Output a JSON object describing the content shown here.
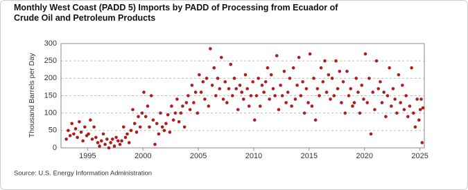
{
  "chart_data": {
    "type": "scatter",
    "title": "Monthly West Coast (PADD 5) Imports by PADD of Processing from Ecuador of Crude Oil and Petroleum Products",
    "y_label": "Thousand Barrels per Day",
    "source": "Source: U.S. Energy Information Administration",
    "color": "#b01c1c",
    "grid": true,
    "xlim": [
      1992.6,
      2025.4
    ],
    "xticks": [
      1995,
      2000,
      2005,
      2010,
      2015,
      2020,
      2025
    ],
    "ylim": [
      0,
      300
    ],
    "yticks": [
      0,
      50,
      100,
      150,
      200,
      250,
      300
    ],
    "x": [
      1993.08,
      1993.25,
      1993.42,
      1993.58,
      1993.75,
      1993.92,
      1994.08,
      1994.25,
      1994.42,
      1994.58,
      1994.75,
      1994.92,
      1995.08,
      1995.25,
      1995.42,
      1995.58,
      1995.75,
      1995.92,
      1996.08,
      1996.25,
      1996.42,
      1996.58,
      1996.75,
      1996.92,
      1997.08,
      1997.25,
      1997.42,
      1997.58,
      1997.75,
      1997.92,
      1998.08,
      1998.25,
      1998.42,
      1998.58,
      1998.75,
      1998.92,
      1999.08,
      1999.25,
      1999.42,
      1999.58,
      1999.75,
      1999.92,
      2000.08,
      2000.25,
      2000.42,
      2000.58,
      2000.75,
      2000.92,
      2001.08,
      2001.25,
      2001.42,
      2001.58,
      2001.75,
      2001.92,
      2002.08,
      2002.25,
      2002.42,
      2002.58,
      2002.75,
      2002.92,
      2003.08,
      2003.25,
      2003.42,
      2003.58,
      2003.75,
      2003.92,
      2004.08,
      2004.25,
      2004.42,
      2004.58,
      2004.75,
      2004.92,
      2005.08,
      2005.25,
      2005.42,
      2005.58,
      2005.75,
      2005.92,
      2006.08,
      2006.25,
      2006.42,
      2006.58,
      2006.75,
      2006.92,
      2007.08,
      2007.25,
      2007.42,
      2007.58,
      2007.75,
      2007.92,
      2008.08,
      2008.25,
      2008.42,
      2008.58,
      2008.75,
      2008.92,
      2009.08,
      2009.25,
      2009.42,
      2009.58,
      2009.75,
      2009.92,
      2010.08,
      2010.25,
      2010.42,
      2010.58,
      2010.75,
      2010.92,
      2011.08,
      2011.25,
      2011.42,
      2011.58,
      2011.75,
      2011.92,
      2012.08,
      2012.25,
      2012.42,
      2012.58,
      2012.75,
      2012.92,
      2013.08,
      2013.25,
      2013.42,
      2013.58,
      2013.75,
      2013.92,
      2014.08,
      2014.25,
      2014.42,
      2014.58,
      2014.75,
      2014.92,
      2015.08,
      2015.25,
      2015.42,
      2015.58,
      2015.75,
      2015.92,
      2016.08,
      2016.25,
      2016.42,
      2016.58,
      2016.75,
      2016.92,
      2017.08,
      2017.25,
      2017.42,
      2017.58,
      2017.75,
      2017.92,
      2018.08,
      2018.25,
      2018.42,
      2018.58,
      2018.75,
      2018.92,
      2019.08,
      2019.25,
      2019.42,
      2019.58,
      2019.75,
      2019.92,
      2020.08,
      2020.25,
      2020.42,
      2020.58,
      2020.75,
      2020.92,
      2021.08,
      2021.25,
      2021.42,
      2021.58,
      2021.75,
      2021.92,
      2022.08,
      2022.25,
      2022.42,
      2022.58,
      2022.75,
      2022.92,
      2023.08,
      2023.25,
      2023.42,
      2023.58,
      2023.75,
      2023.92,
      2024.08,
      2024.25,
      2024.42,
      2024.58,
      2024.75,
      2024.92,
      2025.04,
      2025.12,
      2025.2,
      2025.28
    ],
    "values": [
      25,
      50,
      35,
      70,
      40,
      55,
      30,
      75,
      45,
      20,
      60,
      35,
      40,
      80,
      25,
      60,
      30,
      15,
      5,
      20,
      40,
      10,
      25,
      0,
      15,
      25,
      5,
      30,
      20,
      10,
      20,
      60,
      30,
      40,
      15,
      50,
      110,
      70,
      45,
      90,
      60,
      100,
      160,
      90,
      120,
      60,
      150,
      80,
      10,
      70,
      40,
      100,
      60,
      50,
      70,
      95,
      45,
      120,
      80,
      100,
      140,
      75,
      100,
      120,
      60,
      130,
      150,
      110,
      180,
      130,
      160,
      100,
      210,
      160,
      190,
      140,
      200,
      120,
      285,
      180,
      230,
      150,
      200,
      170,
      260,
      140,
      190,
      130,
      170,
      240,
      150,
      200,
      170,
      110,
      180,
      160,
      140,
      210,
      170,
      120,
      150,
      190,
      80,
      150,
      200,
      120,
      180,
      160,
      190,
      230,
      140,
      210,
      170,
      150,
      265,
      110,
      180,
      150,
      220,
      130,
      160,
      200,
      120,
      230,
      140,
      180,
      260,
      150,
      190,
      100,
      170,
      130,
      270,
      120,
      200,
      80,
      170,
      150,
      230,
      190,
      250,
      160,
      210,
      140,
      200,
      150,
      250,
      170,
      220,
      130,
      190,
      100,
      220,
      150,
      170,
      120,
      130,
      200,
      160,
      100,
      180,
      140,
      270,
      130,
      200,
      40,
      160,
      110,
      250,
      170,
      190,
      130,
      160,
      90,
      150,
      230,
      120,
      170,
      140,
      100,
      210,
      130,
      180,
      110,
      150,
      90,
      120,
      230,
      100,
      60,
      140,
      80,
      110,
      140,
      15,
      115
    ]
  }
}
